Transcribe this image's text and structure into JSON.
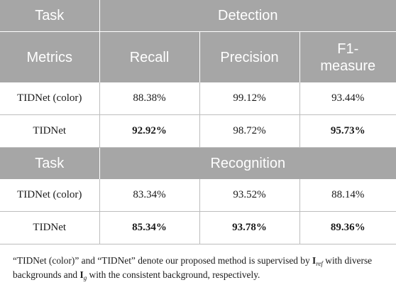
{
  "header": {
    "task_label": "Task",
    "detection_label": "Detection",
    "metrics_label": "Metrics",
    "recall": "Recall",
    "precision": "Precision",
    "f1_line1": "F1-",
    "f1_line2": "measure",
    "recognition_label": "Recognition"
  },
  "detection_rows": [
    {
      "method": "TIDNet (color)",
      "recall": "88.38%",
      "precision": "99.12%",
      "f1": "93.44%"
    },
    {
      "method": "TIDNet",
      "recall": "92.92%",
      "precision": "98.72%",
      "f1": "95.73%"
    }
  ],
  "recognition_rows": [
    {
      "method": "TIDNet (color)",
      "recall": "83.34%",
      "precision": "93.52%",
      "f1": "88.14%"
    },
    {
      "method": "TIDNet",
      "recall": "85.34%",
      "precision": "93.78%",
      "f1": "89.36%"
    }
  ],
  "caption": {
    "part1": "“TIDNet (color)” and “TIDNet” denote our proposed method is supervised by ",
    "sym1": "I",
    "sub1": "ref",
    "part2": " with diverse backgrounds and ",
    "sym2": "I",
    "sub2": "g",
    "part3": " with the consistent background, respectively."
  }
}
